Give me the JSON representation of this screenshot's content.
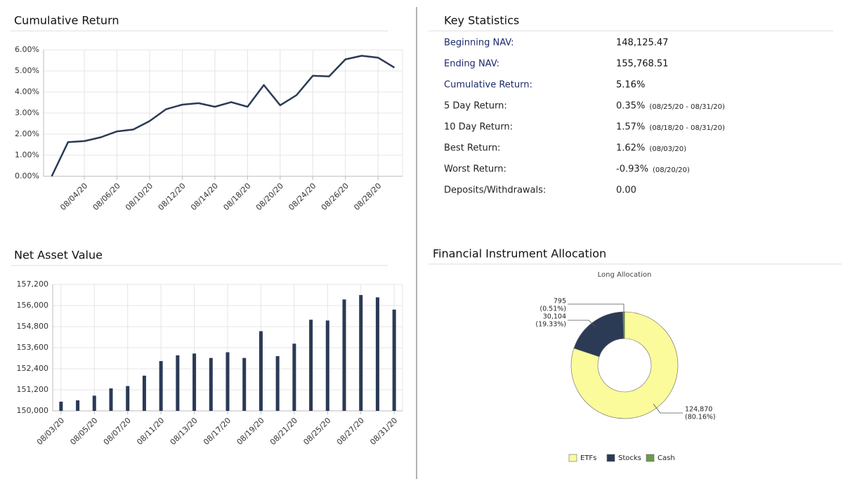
{
  "chart_data": [
    {
      "type": "line",
      "title": "Cumulative Return",
      "categories": [
        null,
        null,
        "08/04/20",
        null,
        "08/06/20",
        null,
        "08/10/20",
        null,
        "08/12/20",
        null,
        "08/14/20",
        null,
        "08/18/20",
        null,
        "08/20/20",
        null,
        "08/24/20",
        null,
        "08/26/20",
        null,
        "08/28/20",
        null
      ],
      "values": [
        0,
        1.62,
        1.67,
        1.85,
        2.13,
        2.22,
        2.62,
        3.18,
        3.4,
        3.47,
        3.3,
        3.52,
        3.3,
        4.33,
        3.37,
        3.85,
        4.77,
        4.74,
        5.55,
        5.72,
        5.63,
        5.16
      ],
      "color": "#2b3a55",
      "ylim": [
        0,
        6
      ],
      "yticks": [
        {
          "value": 0,
          "label": "0.00%"
        },
        {
          "value": 1,
          "label": "1.00%"
        },
        {
          "value": 2,
          "label": "2.00%"
        },
        {
          "value": 3,
          "label": "3.00%"
        },
        {
          "value": 4,
          "label": "4.00%"
        },
        {
          "value": 5,
          "label": "5.00%"
        },
        {
          "value": 6,
          "label": "6.00%"
        }
      ],
      "grid": true
    },
    {
      "type": "bar",
      "title": "Net Asset Value",
      "categories": [
        "08/03/20",
        null,
        "08/05/20",
        null,
        "08/07/20",
        null,
        "08/11/20",
        null,
        "08/13/20",
        null,
        "08/17/20",
        null,
        "08/19/20",
        null,
        "08/21/20",
        null,
        "08/25/20",
        null,
        "08/27/20",
        null,
        "08/31/20"
      ],
      "values": [
        150525,
        150599,
        150866,
        151280,
        151414,
        152006,
        152836,
        153162,
        153265,
        153014,
        153339,
        153014,
        154539,
        153117,
        153828,
        155191,
        155146,
        156346,
        156598,
        156465,
        155769
      ],
      "color": "#2b3a55",
      "ylim": [
        150000,
        157200
      ],
      "yticks": [
        {
          "value": 150000,
          "label": "150,000"
        },
        {
          "value": 151200,
          "label": "151,200"
        },
        {
          "value": 152400,
          "label": "152,400"
        },
        {
          "value": 153600,
          "label": "153,600"
        },
        {
          "value": 154800,
          "label": "154,800"
        },
        {
          "value": 156000,
          "label": "156,000"
        },
        {
          "value": 157200,
          "label": "157,200"
        }
      ],
      "grid": true
    },
    {
      "type": "pie",
      "title": "Financial Instrument Allocation",
      "subtitle": "Long Allocation",
      "categories": [
        "ETFs",
        "Stocks",
        "Cash"
      ],
      "values": [
        124870,
        30104,
        795
      ],
      "value_labels": [
        "124,870",
        "30,104",
        "795"
      ],
      "percent_labels": [
        "(80.16%)",
        "(19.33%)",
        "(0.51%)"
      ],
      "colors": [
        "#fbfb9c",
        "#2b3a55",
        "#6b9a4c"
      ],
      "donut": true
    }
  ],
  "key_statistics": {
    "title": "Key Statistics",
    "rows": [
      {
        "label": "Beginning NAV:",
        "value": "148,125.47",
        "emphasis": true
      },
      {
        "label": "Ending NAV:",
        "value": "155,768.51",
        "emphasis": true
      },
      {
        "label": "Cumulative Return:",
        "value": "5.16%",
        "emphasis": true
      },
      {
        "label": "5 Day Return:",
        "value": "0.35%",
        "note": "(08/25/20 - 08/31/20)"
      },
      {
        "label": "10 Day Return:",
        "value": "1.57%",
        "note": "(08/18/20 - 08/31/20)"
      },
      {
        "label": "Best Return:",
        "value": "1.62%",
        "note": "(08/03/20)"
      },
      {
        "label": "Worst Return:",
        "value": "-0.93%",
        "note": "(08/20/20)"
      },
      {
        "label": "Deposits/Withdrawals:",
        "value": "0.00"
      }
    ]
  }
}
